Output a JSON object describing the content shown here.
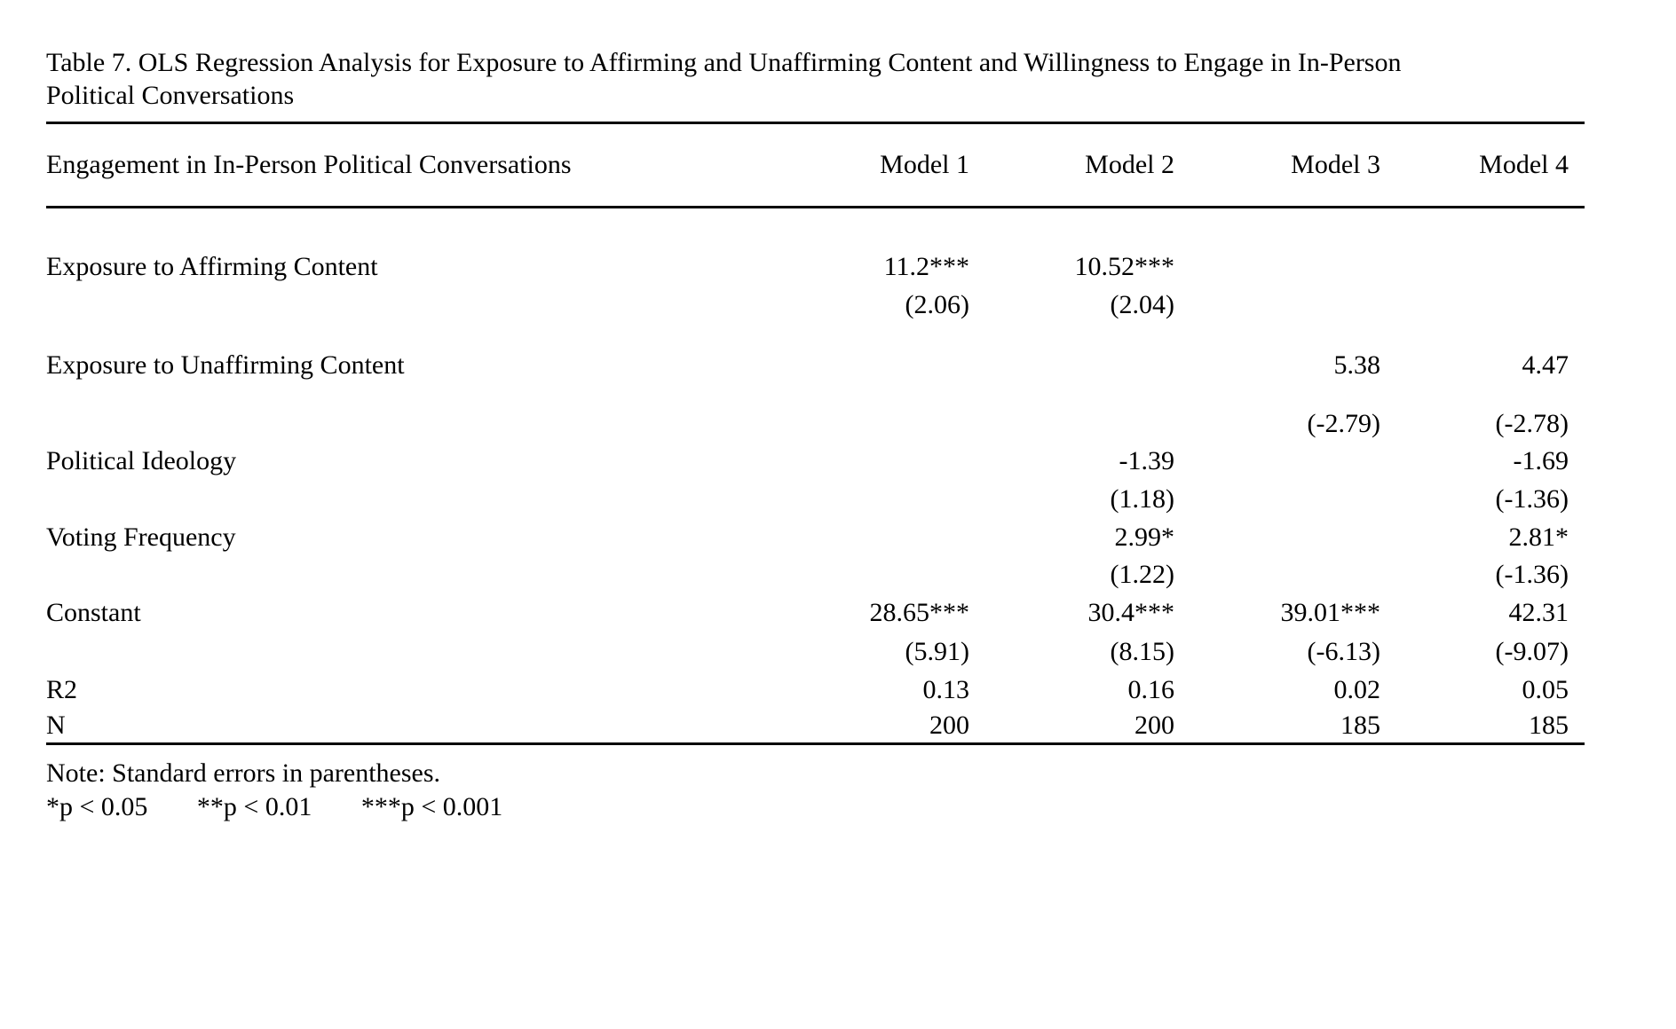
{
  "page": {
    "background": "#ffffff",
    "text_color": "#000000"
  },
  "title": {
    "line1": "Table 7. OLS Regression Analysis for Exposure to Affirming and Unaffirming Content and Willingness to Engage in In-Person",
    "line2": "Political Conversations"
  },
  "table": {
    "header": {
      "row_label": "Engagement in In-Person Political Conversations",
      "columns": [
        "Model 1",
        "Model 2",
        "Model 3",
        "Model 4"
      ]
    },
    "rows": [
      {
        "label": "Exposure to Affirming Content",
        "m1": "11.2***",
        "m2": "10.52***",
        "m3": "",
        "m4": ""
      },
      {
        "label": "",
        "m1": "(2.06)",
        "m2": "(2.04)",
        "m3": "",
        "m4": ""
      },
      {
        "label": "Exposure to Unaffirming Content",
        "m1": "",
        "m2": "",
        "m3": "5.38",
        "m4": "4.47"
      },
      {
        "label": "",
        "m1": "",
        "m2": "",
        "m3": "(-2.79)",
        "m4": "(-2.78)"
      },
      {
        "label": "Political Ideology",
        "m1": "",
        "m2": "-1.39",
        "m3": "",
        "m4": "-1.69"
      },
      {
        "label": "",
        "m1": "",
        "m2": "(1.18)",
        "m3": "",
        "m4": "(-1.36)"
      },
      {
        "label": "Voting Frequency",
        "m1": "",
        "m2": "2.99*",
        "m3": "",
        "m4": "2.81*"
      },
      {
        "label": "",
        "m1": "",
        "m2": "(1.22)",
        "m3": "",
        "m4": "(-1.36)"
      },
      {
        "label": "Constant",
        "m1": "28.65***",
        "m2": "30.4***",
        "m3": "39.01***",
        "m4": "42.31"
      },
      {
        "label": "",
        "m1": "(5.91)",
        "m2": "(8.15)",
        "m3": "(-6.13)",
        "m4": "(-9.07)"
      },
      {
        "label": "R2",
        "m1": "0.13",
        "m2": "0.16",
        "m3": "0.02",
        "m4": "0.05"
      },
      {
        "label": "N",
        "m1": "200",
        "m2": "200",
        "m3": "185",
        "m4": "185"
      }
    ]
  },
  "notes": {
    "line1": "Note: Standard errors in parentheses.",
    "sig1": "*p < 0.05",
    "sig2": "**p < 0.01",
    "sig3": "***p < 0.001"
  }
}
